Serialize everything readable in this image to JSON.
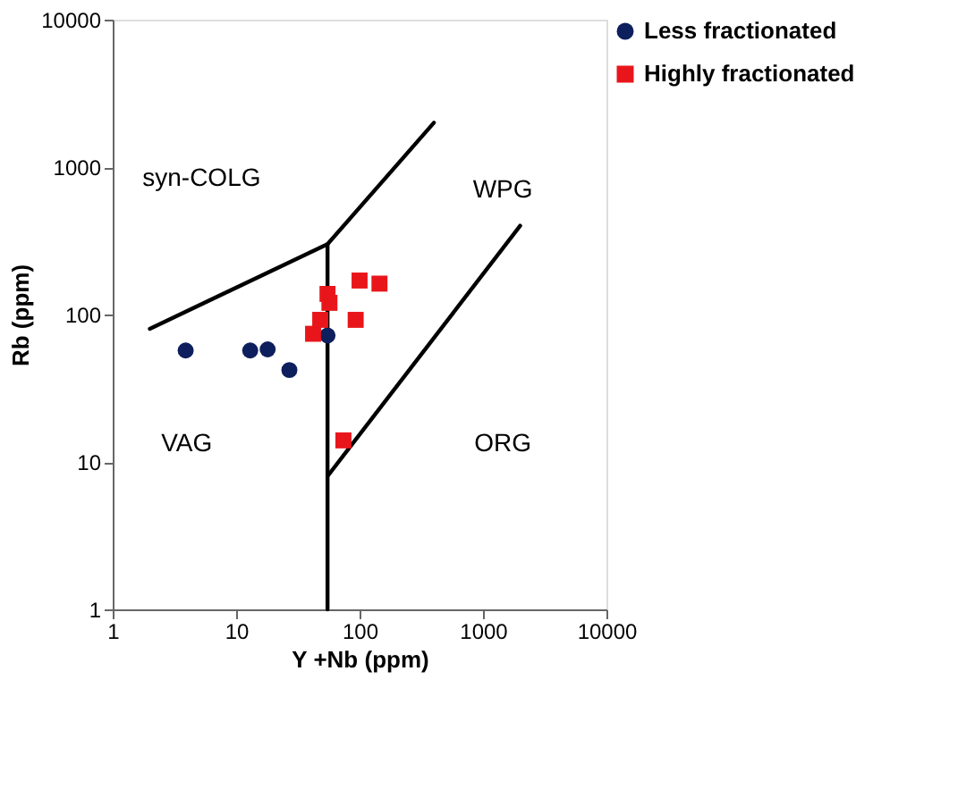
{
  "chart_data": {
    "type": "scatter",
    "xlabel": "Y +Nb (ppm)",
    "ylabel": "Rb (ppm)",
    "log": "xy",
    "xlim": [
      1,
      10000
    ],
    "xticks": [
      1,
      10,
      100,
      1000,
      10000
    ],
    "ylim": [
      1,
      10000
    ],
    "yticks": [
      1,
      10,
      100,
      1000,
      10000
    ],
    "grid": false,
    "legend": "right",
    "series": [
      {
        "name": "Less fractionated",
        "color": "#0d1f5c",
        "marker": "circle",
        "x": [
          3.9,
          13,
          18,
          27,
          55
        ],
        "values": [
          57,
          57,
          58,
          42,
          72
        ]
      },
      {
        "name": "Highly fractionated",
        "color": "#e8161b",
        "marker": "square",
        "x": [
          42,
          48,
          55,
          57,
          93,
          100,
          145,
          74
        ],
        "values": [
          74,
          92,
          138,
          120,
          92,
          170,
          162,
          14
        ]
      },
      {
        "type": "line",
        "color": "#000000",
        "marker": "none",
        "x": [
          2,
          55,
          400
        ],
        "values": [
          80,
          300,
          2000
        ]
      },
      {
        "type": "line",
        "color": "#000000",
        "marker": "none",
        "x": [
          55,
          55
        ],
        "values": [
          1,
          300
        ]
      },
      {
        "type": "line",
        "color": "#000000",
        "marker": "none",
        "x": [
          55,
          2000
        ],
        "values": [
          8,
          400
        ]
      }
    ],
    "annotations": [
      "syn-COLG",
      "WPG",
      "VAG",
      "ORG"
    ]
  }
}
